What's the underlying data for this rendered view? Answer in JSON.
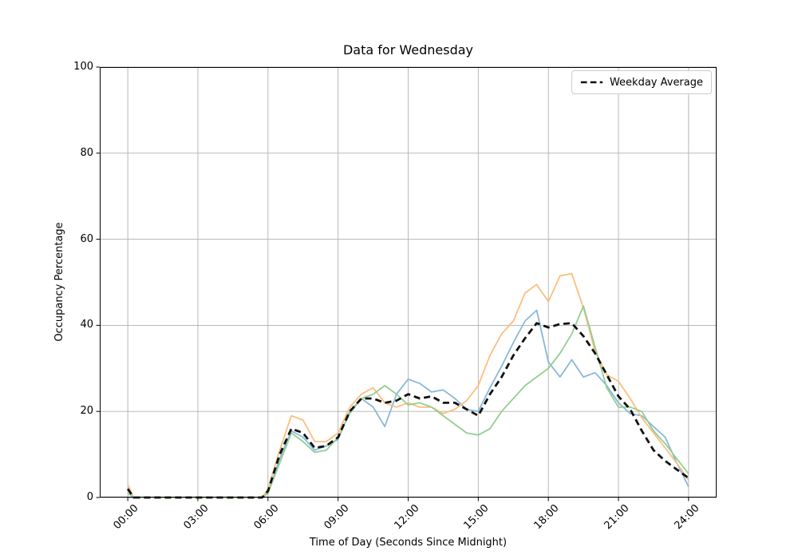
{
  "chart_data": {
    "type": "line",
    "title": "Data for Wednesday",
    "xlabel": "Time of Day (Seconds Since Midnight)",
    "ylabel": "Occupancy Percentage",
    "ylim": [
      0,
      100
    ],
    "xlim_hours": [
      -1.2,
      25.2
    ],
    "grid": true,
    "legend": {
      "entries": [
        "Weekday Average"
      ],
      "position": "upper right"
    },
    "yticks": [
      0,
      20,
      40,
      60,
      80,
      100
    ],
    "xticks": {
      "hours": [
        0,
        3,
        6,
        9,
        12,
        15,
        18,
        21,
        24
      ],
      "labels": [
        "00:00",
        "03:00",
        "06:00",
        "09:00",
        "12:00",
        "15:00",
        "18:00",
        "21:00",
        "24:00"
      ]
    },
    "x_hours": [
      0,
      0.25,
      1,
      2,
      3,
      4,
      5,
      5.75,
      6,
      6.5,
      7,
      7.5,
      8,
      8.5,
      9,
      9.5,
      10,
      10.5,
      11,
      11.5,
      12,
      12.5,
      13,
      13.5,
      14,
      14.5,
      15,
      15.5,
      16,
      16.5,
      17,
      17.5,
      18,
      18.5,
      19,
      19.5,
      20,
      20.5,
      21,
      21.5,
      22,
      22.5,
      23,
      23.5,
      24
    ],
    "series": [
      {
        "name": "series_1_blue",
        "color": "#89b7dc",
        "line_width": 1.8,
        "dashed": false,
        "values": [
          0,
          0,
          0,
          0,
          0,
          0,
          0,
          0,
          1,
          9,
          15.5,
          14,
          11,
          12,
          13.5,
          20,
          23,
          21,
          16.5,
          24,
          27.5,
          26.5,
          24.5,
          25,
          23,
          20.5,
          20,
          25.5,
          30.5,
          36,
          41,
          43.5,
          31.5,
          28,
          32,
          28,
          29,
          26,
          22,
          19.5,
          19,
          16.5,
          14,
          8,
          2.5
        ]
      },
      {
        "name": "series_2_orange",
        "color": "#fcbe7e",
        "line_width": 1.8,
        "dashed": false,
        "values": [
          3,
          0,
          0,
          0,
          0,
          0,
          0,
          0,
          2,
          11,
          19,
          18,
          13,
          13,
          15,
          21,
          24,
          25.5,
          22,
          21,
          22,
          21,
          21,
          19.5,
          20.5,
          22.5,
          26,
          33,
          38,
          41,
          47.5,
          49.5,
          45.5,
          51.5,
          52,
          44,
          34,
          28.5,
          27,
          23,
          18.5,
          15,
          11.5,
          8,
          4
        ]
      },
      {
        "name": "series_3_green",
        "color": "#92cf92",
        "line_width": 1.8,
        "dashed": false,
        "values": [
          1,
          0,
          0,
          0,
          0,
          0,
          0,
          0,
          1,
          8,
          15,
          13,
          10.5,
          11,
          14,
          19.5,
          23,
          24,
          26,
          24,
          21.5,
          22,
          21,
          19,
          17,
          15,
          14.5,
          16,
          20,
          23,
          26,
          28,
          30,
          33.5,
          38,
          44.5,
          35,
          25.5,
          21,
          21,
          20,
          15.5,
          12.5,
          9,
          5.5
        ]
      },
      {
        "name": "Weekday Average",
        "color": "#111111",
        "line_width": 2.8,
        "dashed": true,
        "values": [
          2,
          0,
          0,
          0,
          0,
          0,
          0,
          0,
          1.5,
          10,
          16,
          15,
          11.5,
          12,
          14,
          20,
          23,
          23,
          22,
          22.5,
          24,
          23,
          23.5,
          22,
          22,
          20.5,
          19,
          24,
          28,
          33,
          37,
          40.5,
          39.5,
          40.3,
          40.5,
          37.5,
          33.5,
          28.5,
          23.5,
          20.5,
          15.5,
          11,
          8.5,
          6.5,
          4.5
        ]
      }
    ],
    "style": {
      "grid_color": "#b0b0b0",
      "spine_color": "#000000",
      "background": "#ffffff",
      "average_dash_pattern": "8 5"
    }
  }
}
